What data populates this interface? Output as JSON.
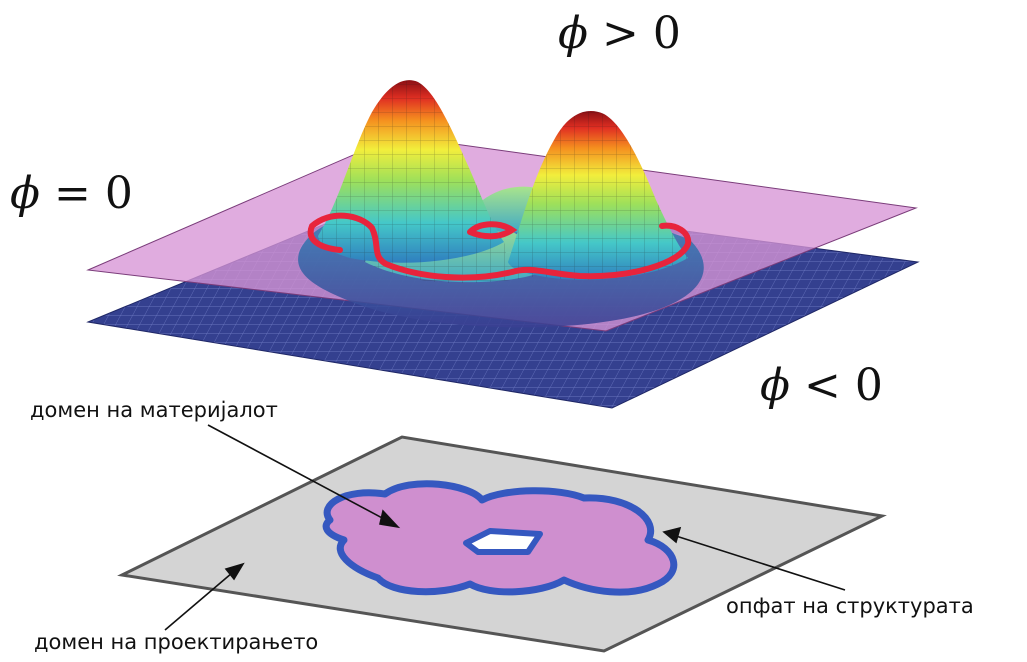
{
  "math_labels": {
    "phi_positive": {
      "symbol": "ϕ",
      "relation": ">",
      "value": "0"
    },
    "phi_zero": {
      "symbol": "ϕ",
      "relation": "=",
      "value": "0"
    },
    "phi_negative": {
      "symbol": "ϕ",
      "relation": "<",
      "value": "0"
    }
  },
  "annotations": {
    "material_domain": "домен на материјалот",
    "design_domain": "домен на проектирањето",
    "structure_boundary": "опфат на структурата"
  },
  "colors": {
    "zero_plane": "#d795d6",
    "base_plane": "#34408f",
    "boundary_red": "#e8243c",
    "design_domain_fill": "#d4d4d4",
    "material_fill": "#cf8fcf",
    "structure_outline": "#3558c0"
  }
}
